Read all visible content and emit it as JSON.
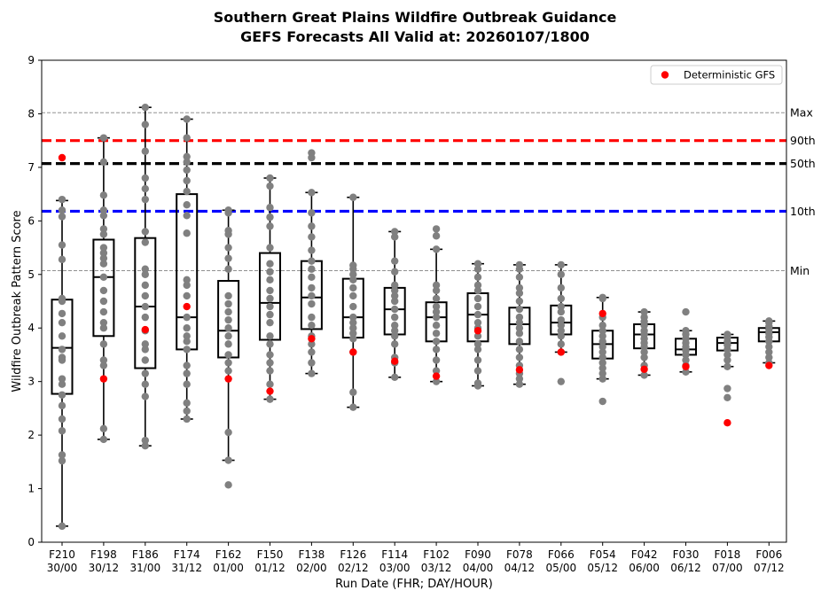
{
  "chart_data": {
    "type": "box",
    "title": "Southern Great Plains Wildfire Outbreak Guidance",
    "subtitle": "GEFS Forecasts All Valid at: 20260107/1800",
    "xlabel": "Run Date (FHR; DAY/HOUR)",
    "ylabel": "Wildfire Outbreak Pattern Score",
    "ylim": [
      0,
      9
    ],
    "yticks": [
      "0",
      "1",
      "2",
      "3",
      "4",
      "5",
      "6",
      "7",
      "8",
      "9"
    ],
    "legend": {
      "label": "Deterministic GFS",
      "placement": "top-right",
      "color": "#ff0000"
    },
    "reference_lines": [
      {
        "label": "Max",
        "value": 8.02,
        "color": "#808080",
        "style": "dashed-thin"
      },
      {
        "label": "90th",
        "value": 7.5,
        "color": "#ff0000",
        "style": "dashed-thick"
      },
      {
        "label": "50th",
        "value": 7.07,
        "color": "#000000",
        "style": "dashed-thick"
      },
      {
        "label": "10th",
        "value": 6.18,
        "color": "#0000ff",
        "style": "dashed-thick"
      },
      {
        "label": "Min",
        "value": 5.07,
        "color": "#808080",
        "style": "dashed-thin"
      }
    ],
    "categories": [
      {
        "fhr": "F210",
        "run": "30/00",
        "whisker_low": 0.3,
        "q1": 2.77,
        "median": 3.63,
        "q3": 4.53,
        "whisker_high": 6.38,
        "gfs": 7.18,
        "members": [
          0.3,
          1.52,
          1.63,
          2.08,
          2.3,
          2.55,
          2.75,
          2.95,
          3.05,
          3.4,
          3.45,
          3.6,
          3.85,
          4.1,
          4.27,
          4.5,
          4.55,
          5.28,
          5.55,
          6.08,
          6.2,
          6.4
        ]
      },
      {
        "fhr": "F198",
        "run": "30/12",
        "whisker_low": 1.92,
        "q1": 3.85,
        "median": 4.95,
        "q3": 5.65,
        "whisker_high": 7.55,
        "gfs": 3.05,
        "members": [
          1.92,
          2.12,
          3.3,
          3.4,
          3.7,
          4.0,
          4.1,
          4.3,
          4.5,
          4.7,
          4.95,
          5.2,
          5.3,
          5.4,
          5.5,
          5.75,
          5.85,
          6.1,
          6.2,
          6.48,
          7.1,
          7.55
        ]
      },
      {
        "fhr": "F186",
        "run": "31/00",
        "whisker_low": 1.8,
        "q1": 3.25,
        "median": 4.4,
        "q3": 5.68,
        "whisker_high": 8.12,
        "gfs": 3.97,
        "members": [
          1.8,
          1.9,
          2.72,
          2.95,
          3.15,
          3.4,
          3.6,
          3.7,
          3.95,
          4.2,
          4.4,
          4.6,
          4.8,
          5.0,
          5.1,
          5.6,
          5.8,
          6.4,
          6.6,
          6.8,
          7.3,
          7.8,
          8.12
        ]
      },
      {
        "fhr": "F174",
        "run": "31/12",
        "whisker_low": 2.3,
        "q1": 3.6,
        "median": 4.2,
        "q3": 6.5,
        "whisker_high": 7.9,
        "gfs": 4.4,
        "members": [
          2.3,
          2.45,
          2.6,
          2.95,
          3.15,
          3.3,
          3.6,
          3.75,
          3.85,
          4.0,
          4.2,
          4.6,
          4.8,
          4.9,
          5.77,
          6.1,
          6.3,
          6.55,
          6.75,
          6.95,
          7.1,
          7.2,
          7.55,
          7.9
        ]
      },
      {
        "fhr": "F162",
        "run": "01/00",
        "whisker_low": 1.53,
        "q1": 3.45,
        "median": 3.95,
        "q3": 4.88,
        "whisker_high": 6.2,
        "gfs": 3.05,
        "members": [
          1.07,
          1.53,
          2.05,
          3.2,
          3.35,
          3.5,
          3.7,
          3.85,
          4.0,
          4.15,
          4.3,
          4.45,
          4.6,
          5.1,
          5.3,
          5.5,
          5.75,
          5.82,
          6.15,
          6.2
        ]
      },
      {
        "fhr": "F150",
        "run": "01/12",
        "whisker_low": 2.67,
        "q1": 3.78,
        "median": 4.47,
        "q3": 5.4,
        "whisker_high": 6.8,
        "gfs": 2.82,
        "members": [
          2.67,
          2.95,
          3.2,
          3.35,
          3.5,
          3.7,
          3.85,
          4.1,
          4.25,
          4.4,
          4.55,
          4.7,
          4.9,
          5.05,
          5.2,
          5.5,
          5.9,
          6.07,
          6.25,
          6.65,
          6.8
        ]
      },
      {
        "fhr": "F138",
        "run": "02/00",
        "whisker_low": 3.15,
        "q1": 3.98,
        "median": 4.57,
        "q3": 5.25,
        "whisker_high": 6.53,
        "gfs": 3.8,
        "members": [
          3.15,
          3.35,
          3.55,
          3.7,
          3.85,
          4.05,
          4.2,
          4.45,
          4.6,
          4.75,
          4.95,
          5.1,
          5.25,
          5.45,
          5.7,
          5.9,
          6.15,
          6.53,
          7.18,
          7.27
        ]
      },
      {
        "fhr": "F126",
        "run": "02/12",
        "whisker_low": 2.52,
        "q1": 3.82,
        "median": 4.2,
        "q3": 4.92,
        "whisker_high": 6.44,
        "gfs": 3.55,
        "members": [
          2.52,
          2.8,
          3.55,
          3.8,
          3.9,
          4.0,
          4.1,
          4.2,
          4.4,
          4.6,
          4.75,
          4.9,
          5.0,
          5.1,
          5.17,
          6.44
        ]
      },
      {
        "fhr": "F114",
        "run": "03/00",
        "whisker_low": 3.08,
        "q1": 3.88,
        "median": 4.35,
        "q3": 4.75,
        "whisker_high": 5.8,
        "gfs": 3.38,
        "members": [
          3.08,
          3.35,
          3.45,
          3.7,
          3.85,
          3.95,
          4.05,
          4.2,
          4.35,
          4.5,
          4.6,
          4.7,
          4.8,
          5.05,
          5.25,
          5.7,
          5.8
        ]
      },
      {
        "fhr": "F102",
        "run": "03/12",
        "whisker_low": 3.0,
        "q1": 3.75,
        "median": 4.2,
        "q3": 4.48,
        "whisker_high": 5.47,
        "gfs": 3.1,
        "members": [
          3.0,
          3.2,
          3.4,
          3.6,
          3.75,
          3.9,
          4.05,
          4.2,
          4.3,
          4.4,
          4.55,
          4.7,
          4.8,
          5.47,
          5.72,
          5.85
        ]
      },
      {
        "fhr": "F090",
        "run": "04/00",
        "whisker_low": 2.92,
        "q1": 3.75,
        "median": 4.25,
        "q3": 4.65,
        "whisker_high": 5.2,
        "gfs": 3.95,
        "members": [
          2.92,
          2.97,
          3.2,
          3.4,
          3.6,
          3.7,
          3.85,
          4.0,
          4.1,
          4.25,
          4.4,
          4.55,
          4.7,
          4.8,
          4.95,
          5.1,
          5.2
        ]
      },
      {
        "fhr": "F078",
        "run": "04/12",
        "whisker_low": 2.95,
        "q1": 3.7,
        "median": 4.07,
        "q3": 4.38,
        "whisker_high": 5.18,
        "gfs": 3.22,
        "members": [
          2.95,
          3.05,
          3.15,
          3.3,
          3.45,
          3.6,
          3.75,
          3.9,
          4.0,
          4.1,
          4.2,
          4.35,
          4.5,
          4.65,
          4.75,
          4.95,
          5.1,
          5.18
        ]
      },
      {
        "fhr": "F066",
        "run": "05/00",
        "whisker_low": 3.55,
        "q1": 3.88,
        "median": 4.1,
        "q3": 4.42,
        "whisker_high": 5.18,
        "gfs": 3.55,
        "members": [
          3.0,
          3.55,
          3.7,
          3.85,
          3.95,
          4.05,
          4.15,
          4.3,
          4.4,
          4.55,
          4.75,
          5.0,
          5.18
        ]
      },
      {
        "fhr": "F054",
        "run": "05/12",
        "whisker_low": 3.05,
        "q1": 3.43,
        "median": 3.7,
        "q3": 3.95,
        "whisker_high": 4.57,
        "gfs": 4.27,
        "members": [
          2.63,
          3.05,
          3.15,
          3.25,
          3.35,
          3.45,
          3.55,
          3.65,
          3.75,
          3.85,
          3.95,
          4.05,
          4.2,
          4.55,
          4.57
        ]
      },
      {
        "fhr": "F042",
        "run": "06/00",
        "whisker_low": 3.12,
        "q1": 3.62,
        "median": 3.88,
        "q3": 4.07,
        "whisker_high": 4.3,
        "gfs": 3.23,
        "members": [
          3.12,
          3.3,
          3.45,
          3.55,
          3.65,
          3.72,
          3.8,
          3.88,
          3.95,
          4.05,
          4.12,
          4.2,
          4.3
        ]
      },
      {
        "fhr": "F030",
        "run": "06/12",
        "whisker_low": 3.18,
        "q1": 3.5,
        "median": 3.6,
        "q3": 3.8,
        "whisker_high": 3.95,
        "gfs": 3.28,
        "members": [
          3.18,
          3.3,
          3.4,
          3.5,
          3.58,
          3.65,
          3.72,
          3.8,
          3.88,
          3.95,
          4.3
        ]
      },
      {
        "fhr": "F018",
        "run": "07/00",
        "whisker_low": 3.28,
        "q1": 3.58,
        "median": 3.72,
        "q3": 3.82,
        "whisker_high": 3.88,
        "gfs": 2.23,
        "members": [
          2.7,
          2.87,
          3.28,
          3.4,
          3.5,
          3.6,
          3.68,
          3.75,
          3.82,
          3.88
        ]
      },
      {
        "fhr": "F006",
        "run": "07/12",
        "whisker_low": 3.35,
        "q1": 3.75,
        "median": 3.92,
        "q3": 4.0,
        "whisker_high": 4.13,
        "gfs": 3.3,
        "members": [
          3.35,
          3.45,
          3.55,
          3.65,
          3.75,
          3.83,
          3.9,
          3.97,
          4.03,
          4.1,
          4.13
        ]
      }
    ]
  }
}
